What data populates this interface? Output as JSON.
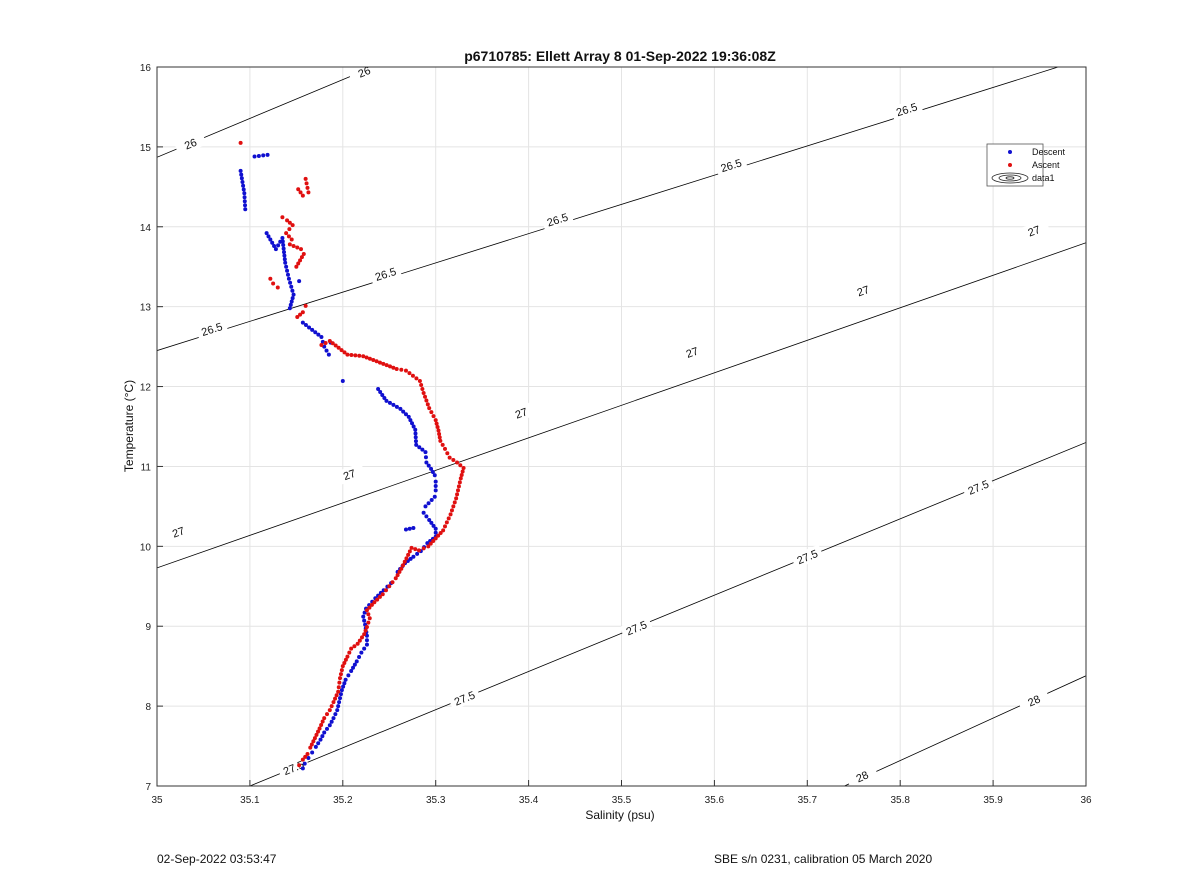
{
  "chart_data": {
    "type": "scatter",
    "title": "p6710785: Ellett Array 8 01-Sep-2022 19:36:08Z",
    "xlabel": "Salinity (psu)",
    "ylabel": "Temperature (°C)",
    "xlim": [
      35,
      36
    ],
    "ylim": [
      7,
      16
    ],
    "xticks": [
      "35",
      "35.1",
      "35.2",
      "35.3",
      "35.4",
      "35.5",
      "35.6",
      "35.7",
      "35.8",
      "35.9",
      "36"
    ],
    "yticks": [
      "7",
      "8",
      "9",
      "10",
      "11",
      "12",
      "13",
      "14",
      "15",
      "16"
    ],
    "grid": true,
    "legend_position": "top-right",
    "legend": [
      "Descent",
      "Ascent",
      "data1"
    ],
    "series_colors": {
      "Descent": "#1010d0",
      "Ascent": "#e01010",
      "contour": "#000000"
    },
    "contours": [
      {
        "level": "26",
        "points": [
          [
            35.0,
            14.87
          ],
          [
            35.5,
            17.3
          ]
        ],
        "labels": [
          [
            35.036,
            15.04
          ],
          [
            35.223,
            15.94
          ]
        ]
      },
      {
        "level": "26.5",
        "points": [
          [
            35.0,
            12.45
          ],
          [
            35.97,
            16.0
          ]
        ],
        "labels": [
          [
            35.059,
            12.72
          ],
          [
            35.246,
            13.41
          ],
          [
            35.431,
            14.09
          ],
          [
            35.618,
            14.77
          ],
          [
            35.807,
            15.47
          ]
        ]
      },
      {
        "level": "27",
        "points": [
          [
            35.0,
            9.73
          ],
          [
            36.0,
            13.8
          ]
        ],
        "labels": [
          [
            35.023,
            10.18
          ],
          [
            35.207,
            10.9
          ],
          [
            35.392,
            11.67
          ],
          [
            35.576,
            12.43
          ],
          [
            35.76,
            13.2
          ],
          [
            35.944,
            13.95
          ]
        ]
      },
      {
        "level": "27.5",
        "points": [
          [
            35.1,
            7.0
          ],
          [
            36.0,
            11.3
          ]
        ],
        "labels": [
          [
            35.147,
            7.23
          ],
          [
            35.331,
            8.1
          ],
          [
            35.516,
            8.98
          ],
          [
            35.7,
            9.87
          ],
          [
            35.884,
            10.74
          ]
        ]
      },
      {
        "level": "28",
        "points": [
          [
            35.74,
            7.0
          ],
          [
            36.0,
            8.38
          ]
        ],
        "labels": [
          [
            35.759,
            7.12
          ],
          [
            35.944,
            8.07
          ]
        ]
      }
    ],
    "series": [
      {
        "name": "Descent",
        "points": [
          [
            35.09,
            14.7
          ],
          [
            35.094,
            14.42
          ],
          [
            35.095,
            14.22
          ],
          [
            35.105,
            14.88
          ],
          [
            35.119,
            14.9
          ],
          [
            35.118,
            13.92
          ],
          [
            35.128,
            13.72
          ],
          [
            35.135,
            13.86
          ],
          [
            35.138,
            13.55
          ],
          [
            35.142,
            13.35
          ],
          [
            35.147,
            13.15
          ],
          [
            35.143,
            12.98
          ],
          [
            35.153,
            13.32
          ],
          [
            35.157,
            12.8
          ],
          [
            35.177,
            12.62
          ],
          [
            35.18,
            12.5
          ],
          [
            35.185,
            12.4
          ],
          [
            35.2,
            12.07
          ],
          [
            35.187,
            12.55
          ],
          [
            35.238,
            11.97
          ],
          [
            35.247,
            11.82
          ],
          [
            35.262,
            11.72
          ],
          [
            35.271,
            11.62
          ],
          [
            35.278,
            11.46
          ],
          [
            35.279,
            11.27
          ],
          [
            35.289,
            11.18
          ],
          [
            35.29,
            11.05
          ],
          [
            35.295,
            10.97
          ],
          [
            35.299,
            10.89
          ],
          [
            35.3,
            10.81
          ],
          [
            35.3,
            10.7
          ],
          [
            35.299,
            10.62
          ],
          [
            35.289,
            10.5
          ],
          [
            35.287,
            10.42
          ],
          [
            35.293,
            10.33
          ],
          [
            35.3,
            10.22
          ],
          [
            35.3,
            10.12
          ],
          [
            35.291,
            10.04
          ],
          [
            35.284,
            9.94
          ],
          [
            35.276,
            9.87
          ],
          [
            35.267,
            9.79
          ],
          [
            35.259,
            9.68
          ],
          [
            35.268,
            10.21
          ],
          [
            35.276,
            10.23
          ],
          [
            35.252,
            9.54
          ],
          [
            35.244,
            9.45
          ],
          [
            35.235,
            9.35
          ],
          [
            35.225,
            9.22
          ],
          [
            35.222,
            9.12
          ],
          [
            35.224,
            9.02
          ],
          [
            35.226,
            8.88
          ],
          [
            35.226,
            8.77
          ],
          [
            35.22,
            8.67
          ],
          [
            35.215,
            8.56
          ],
          [
            35.209,
            8.44
          ],
          [
            35.203,
            8.33
          ],
          [
            35.199,
            8.2
          ],
          [
            35.196,
            8.05
          ],
          [
            35.194,
            7.95
          ],
          [
            35.19,
            7.85
          ],
          [
            35.186,
            7.76
          ],
          [
            35.18,
            7.67
          ],
          [
            35.176,
            7.58
          ],
          [
            35.171,
            7.49
          ],
          [
            35.167,
            7.42
          ],
          [
            35.163,
            7.35
          ],
          [
            35.159,
            7.28
          ],
          [
            35.157,
            7.22
          ]
        ]
      },
      {
        "name": "Ascent",
        "points": [
          [
            35.09,
            15.05
          ],
          [
            35.152,
            14.47
          ],
          [
            35.157,
            14.39
          ],
          [
            35.163,
            14.43
          ],
          [
            35.16,
            14.6
          ],
          [
            35.135,
            14.12
          ],
          [
            35.14,
            14.08
          ],
          [
            35.146,
            14.02
          ],
          [
            35.139,
            13.92
          ],
          [
            35.145,
            13.84
          ],
          [
            35.143,
            13.78
          ],
          [
            35.155,
            13.72
          ],
          [
            35.158,
            13.66
          ],
          [
            35.15,
            13.5
          ],
          [
            35.122,
            13.35
          ],
          [
            35.125,
            13.29
          ],
          [
            35.13,
            13.24
          ],
          [
            35.151,
            12.87
          ],
          [
            35.157,
            12.93
          ],
          [
            35.16,
            13.01
          ],
          [
            35.177,
            12.52
          ],
          [
            35.186,
            12.57
          ],
          [
            35.205,
            12.4
          ],
          [
            35.222,
            12.38
          ],
          [
            35.24,
            12.3
          ],
          [
            35.258,
            12.22
          ],
          [
            35.268,
            12.2
          ],
          [
            35.283,
            12.07
          ],
          [
            35.287,
            11.92
          ],
          [
            35.293,
            11.73
          ],
          [
            35.3,
            11.58
          ],
          [
            35.303,
            11.45
          ],
          [
            35.305,
            11.32
          ],
          [
            35.31,
            11.22
          ],
          [
            35.315,
            11.11
          ],
          [
            35.323,
            11.05
          ],
          [
            35.33,
            10.98
          ],
          [
            35.327,
            10.85
          ],
          [
            35.325,
            10.75
          ],
          [
            35.322,
            10.6
          ],
          [
            35.319,
            10.5
          ],
          [
            35.316,
            10.4
          ],
          [
            35.312,
            10.3
          ],
          [
            35.308,
            10.2
          ],
          [
            35.3,
            10.1
          ],
          [
            35.292,
            10.0
          ],
          [
            35.282,
            9.95
          ],
          [
            35.274,
            9.98
          ],
          [
            35.263,
            9.72
          ],
          [
            35.257,
            9.6
          ],
          [
            35.25,
            9.5
          ],
          [
            35.243,
            9.4
          ],
          [
            35.234,
            9.3
          ],
          [
            35.226,
            9.2
          ],
          [
            35.229,
            9.1
          ],
          [
            35.226,
            8.99
          ],
          [
            35.223,
            8.9
          ],
          [
            35.216,
            8.78
          ],
          [
            35.209,
            8.72
          ],
          [
            35.205,
            8.62
          ],
          [
            35.2,
            8.5
          ],
          [
            35.197,
            8.35
          ],
          [
            35.195,
            8.18
          ],
          [
            35.19,
            8.05
          ],
          [
            35.186,
            7.95
          ],
          [
            35.18,
            7.85
          ],
          [
            35.175,
            7.72
          ],
          [
            35.17,
            7.6
          ],
          [
            35.165,
            7.48
          ],
          [
            35.162,
            7.4
          ],
          [
            35.157,
            7.33
          ],
          [
            35.153,
            7.26
          ]
        ]
      }
    ]
  },
  "footer": {
    "left": "02-Sep-2022 03:53:47",
    "right": "SBE s/n 0231, calibration 05 March 2020"
  }
}
